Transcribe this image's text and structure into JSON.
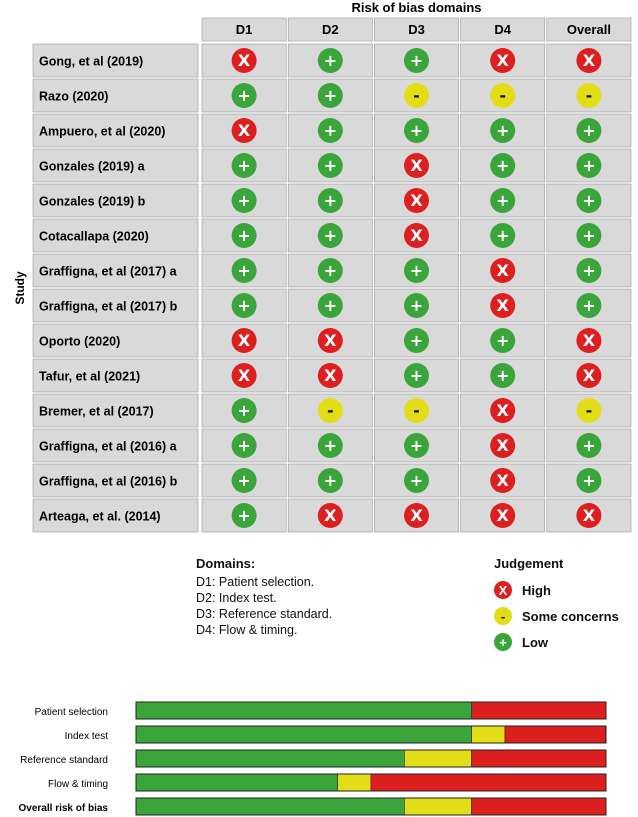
{
  "chart_data": [
    {
      "type": "table",
      "title": "Risk of bias domains",
      "row_axis_label": "Study",
      "columns": [
        "D1",
        "D2",
        "D3",
        "D4",
        "Overall"
      ],
      "rows": [
        {
          "study": "Gong, et al (2019)",
          "judgements": [
            "High",
            "Low",
            "Low",
            "High",
            "High"
          ]
        },
        {
          "study": "Razo (2020)",
          "judgements": [
            "Low",
            "Low",
            "Some concerns",
            "Some concerns",
            "Some concerns"
          ]
        },
        {
          "study": "Ampuero, et al (2020)",
          "judgements": [
            "High",
            "Low",
            "Low",
            "Low",
            "Low"
          ]
        },
        {
          "study": "Gonzales (2019) a",
          "judgements": [
            "Low",
            "Low",
            "High",
            "Low",
            "Low"
          ]
        },
        {
          "study": "Gonzales (2019) b",
          "judgements": [
            "Low",
            "Low",
            "High",
            "Low",
            "Low"
          ]
        },
        {
          "study": "Cotacallapa (2020)",
          "judgements": [
            "Low",
            "Low",
            "High",
            "Low",
            "Low"
          ]
        },
        {
          "study": "Graffigna, et al (2017) a",
          "judgements": [
            "Low",
            "Low",
            "Low",
            "High",
            "Low"
          ]
        },
        {
          "study": "Graffigna, et al (2017) b",
          "judgements": [
            "Low",
            "Low",
            "Low",
            "High",
            "Low"
          ]
        },
        {
          "study": "Oporto (2020)",
          "judgements": [
            "High",
            "High",
            "Low",
            "Low",
            "High"
          ]
        },
        {
          "study": "Tafur, et al (2021)",
          "judgements": [
            "High",
            "High",
            "Low",
            "Low",
            "High"
          ]
        },
        {
          "study": "Bremer, et al (2017)",
          "judgements": [
            "Low",
            "Some concerns",
            "Some concerns",
            "High",
            "Some concerns"
          ]
        },
        {
          "study": "Graffigna, et al (2016) a",
          "judgements": [
            "Low",
            "Low",
            "Low",
            "High",
            "Low"
          ]
        },
        {
          "study": "Graffigna, et al (2016) b",
          "judgements": [
            "Low",
            "Low",
            "Low",
            "High",
            "Low"
          ]
        },
        {
          "study": "Arteaga, et al. (2014)",
          "judgements": [
            "Low",
            "High",
            "High",
            "High",
            "High"
          ]
        }
      ]
    },
    {
      "type": "bar",
      "stacked": true,
      "orientation": "horizontal",
      "categories": [
        "Patient selection",
        "Index test",
        "Reference standard",
        "Flow & timing",
        "Overall risk of bias"
      ],
      "series": [
        {
          "name": "Low",
          "values": [
            71.4,
            71.4,
            57.1,
            42.9,
            57.1
          ]
        },
        {
          "name": "Some concerns",
          "values": [
            0,
            7.1,
            14.3,
            7.1,
            14.3
          ]
        },
        {
          "name": "High",
          "values": [
            28.6,
            21.4,
            28.6,
            50.0,
            28.6
          ]
        }
      ],
      "unit": "percent",
      "xlim": [
        0,
        100
      ]
    }
  ],
  "legend": {
    "domains_title": "Domains:",
    "domains": [
      "D1: Patient selection.",
      "D2: Index test.",
      "D3: Reference standard.",
      "D4: Flow & timing."
    ],
    "judgement_title": "Judgement",
    "judgements": [
      {
        "label": "High",
        "symbol": "X",
        "color": "#dd1f1f"
      },
      {
        "label": "Some concerns",
        "symbol": "-",
        "color": "#e3dd17"
      },
      {
        "label": "Low",
        "symbol": "+",
        "color": "#3aa53a"
      }
    ]
  },
  "colors": {
    "Low": "#3aa53a",
    "Some concerns": "#e3dd17",
    "High": "#dd1f1f",
    "cell_bg": "#d9d9d9",
    "header_bg": "#d9d9d9"
  },
  "symbols": {
    "Low": "+",
    "Some concerns": "-",
    "High": "X"
  }
}
